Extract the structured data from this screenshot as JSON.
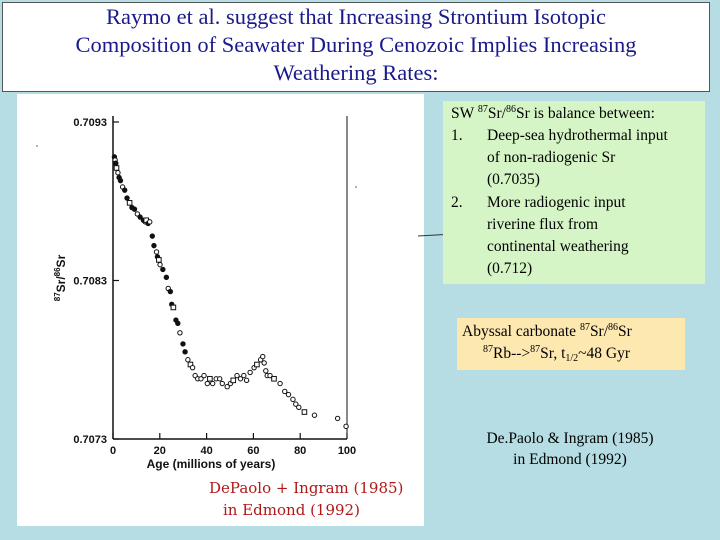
{
  "title": {
    "line1": "Raymo et al. suggest that Increasing Strontium Isotopic",
    "line2": "Composition of Seawater During Cenozoic Implies Increasing",
    "line3": "Weathering Rates:"
  },
  "balance_box": {
    "header_pre": "SW ",
    "sup87": "87",
    "sr_slash": "Sr/",
    "sup86": "86",
    "header_post": "Sr is balance between:",
    "item1_num": "1.",
    "item1_lines": [
      "Deep-sea hydrothermal input",
      "of non-radiogenic Sr",
      "(0.7035)"
    ],
    "item2_num": "2.",
    "item2_lines": [
      "More radiogenic input",
      "riverine flux from",
      "continental weathering",
      "(0.712)"
    ]
  },
  "carbonate_box": {
    "line1_pre": "Abyssal carbonate ",
    "sup87": "87",
    "line1_mid": "Sr/",
    "sup86": "86",
    "line1_post": "Sr",
    "line2_sup87a": "87",
    "line2_rb": "Rb-->",
    "line2_sup87b": "87",
    "line2_sr": "Sr, t",
    "line2_sub": "1/2",
    "line2_post": "~48 Gyr"
  },
  "reference": {
    "line1": "De.Paolo & Ingram (1985)",
    "line2": "in Edmond (1992)"
  },
  "handwritten_note": {
    "line1": "DePaolo + Ingram (1985)",
    "line2": "in Edmond (1992)"
  },
  "chart_data": {
    "type": "scatter",
    "xlabel": "Age (millions of years)",
    "ylabel_parts": [
      "87",
      "Sr/",
      "86",
      "Sr"
    ],
    "x_ticks": [
      "0",
      "20",
      "40",
      "60",
      "80",
      "100"
    ],
    "y_ticks": [
      "0.7093",
      "0.7083",
      "0.7073"
    ],
    "xlim": [
      0,
      100
    ],
    "ylim": [
      0.7073,
      0.7093
    ],
    "points": [
      [
        0.6,
        0.70908
      ],
      [
        0.9,
        0.70906
      ],
      [
        1.2,
        0.70904
      ],
      [
        1.5,
        0.70901
      ],
      [
        2.1,
        0.70898
      ],
      [
        2.6,
        0.70895
      ],
      [
        3.2,
        0.70893
      ],
      [
        4.1,
        0.70889
      ],
      [
        5.0,
        0.70887
      ],
      [
        6.0,
        0.70882
      ],
      [
        7.1,
        0.70879
      ],
      [
        8.1,
        0.70876
      ],
      [
        9.2,
        0.70875
      ],
      [
        10.4,
        0.70872
      ],
      [
        11.6,
        0.7087
      ],
      [
        13.0,
        0.70868
      ],
      [
        13.8,
        0.70867
      ],
      [
        14.2,
        0.70868
      ],
      [
        15.0,
        0.70866
      ],
      [
        15.7,
        0.70867
      ],
      [
        16.8,
        0.70858
      ],
      [
        17.5,
        0.70852
      ],
      [
        18.6,
        0.70848
      ],
      [
        19.0,
        0.70845
      ],
      [
        19.6,
        0.70843
      ],
      [
        20.1,
        0.7084
      ],
      [
        21.3,
        0.70837
      ],
      [
        22.8,
        0.70832
      ],
      [
        23.6,
        0.70825
      ],
      [
        24.5,
        0.70823
      ],
      [
        25.1,
        0.70815
      ],
      [
        25.8,
        0.70813
      ],
      [
        26.9,
        0.70805
      ],
      [
        27.7,
        0.70803
      ],
      [
        28.6,
        0.70797
      ],
      [
        29.9,
        0.7079
      ],
      [
        30.8,
        0.70785
      ],
      [
        32.0,
        0.7078
      ],
      [
        33.1,
        0.70777
      ],
      [
        34.0,
        0.70775
      ],
      [
        35.1,
        0.7077
      ],
      [
        36.2,
        0.70768
      ],
      [
        37.6,
        0.70768
      ],
      [
        38.9,
        0.7077
      ],
      [
        40.3,
        0.70765
      ],
      [
        41.4,
        0.70768
      ],
      [
        42.6,
        0.70765
      ],
      [
        44.1,
        0.70768
      ],
      [
        45.6,
        0.70768
      ],
      [
        46.7,
        0.70765
      ],
      [
        48.8,
        0.70763
      ],
      [
        50.2,
        0.70765
      ],
      [
        51.4,
        0.70767
      ],
      [
        53.0,
        0.7077
      ],
      [
        54.5,
        0.70768
      ],
      [
        55.9,
        0.7077
      ],
      [
        57.1,
        0.70767
      ],
      [
        58.6,
        0.70772
      ],
      [
        60.3,
        0.70775
      ],
      [
        61.5,
        0.70777
      ],
      [
        63.1,
        0.7078
      ],
      [
        64.0,
        0.70782
      ],
      [
        64.6,
        0.70778
      ],
      [
        65.3,
        0.70773
      ],
      [
        65.9,
        0.7077
      ],
      [
        67.1,
        0.7077
      ],
      [
        68.8,
        0.70768
      ],
      [
        71.4,
        0.70765
      ],
      [
        73.4,
        0.7076
      ],
      [
        75.0,
        0.70758
      ],
      [
        76.9,
        0.70755
      ],
      [
        78.1,
        0.70752
      ],
      [
        79.4,
        0.7075
      ],
      [
        81.8,
        0.70747
      ],
      [
        86.1,
        0.70745
      ],
      [
        96.0,
        0.70743
      ],
      [
        99.6,
        0.70738
      ]
    ]
  },
  "colors": {
    "background": "#b5dde3",
    "title_text": "#1a1a8c",
    "balance_box": "#d6f5c6",
    "carbonate_box": "#fde8b0",
    "handwriting": "#b01818"
  }
}
